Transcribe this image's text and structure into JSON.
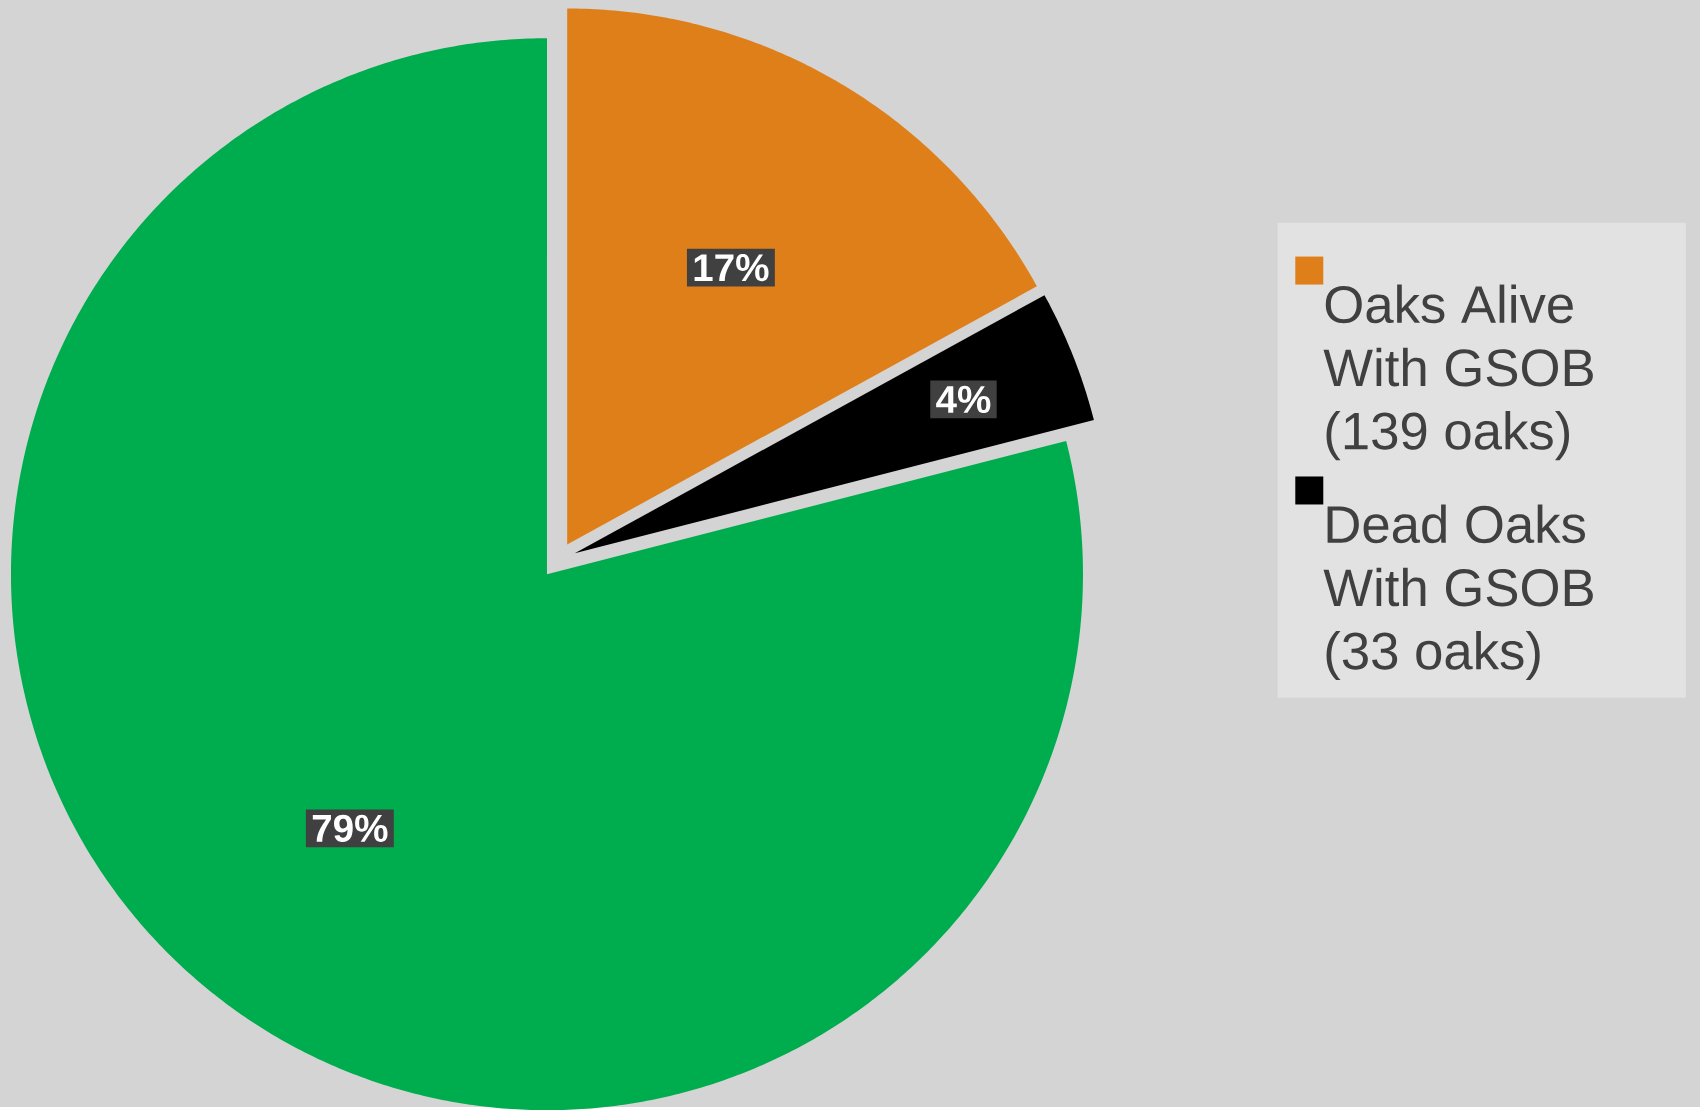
{
  "chart_data": {
    "type": "pie",
    "categories": [
      "Oaks Alive With GSOB (139 oaks)",
      "Dead Oaks With GSOB (33 oaks)",
      null
    ],
    "values": [
      17,
      4,
      79
    ],
    "colors": [
      "#df7f19",
      "#000000",
      "#00ad4e"
    ],
    "value_labels": [
      "17%",
      "4%",
      "79%"
    ],
    "legend": "right"
  }
}
